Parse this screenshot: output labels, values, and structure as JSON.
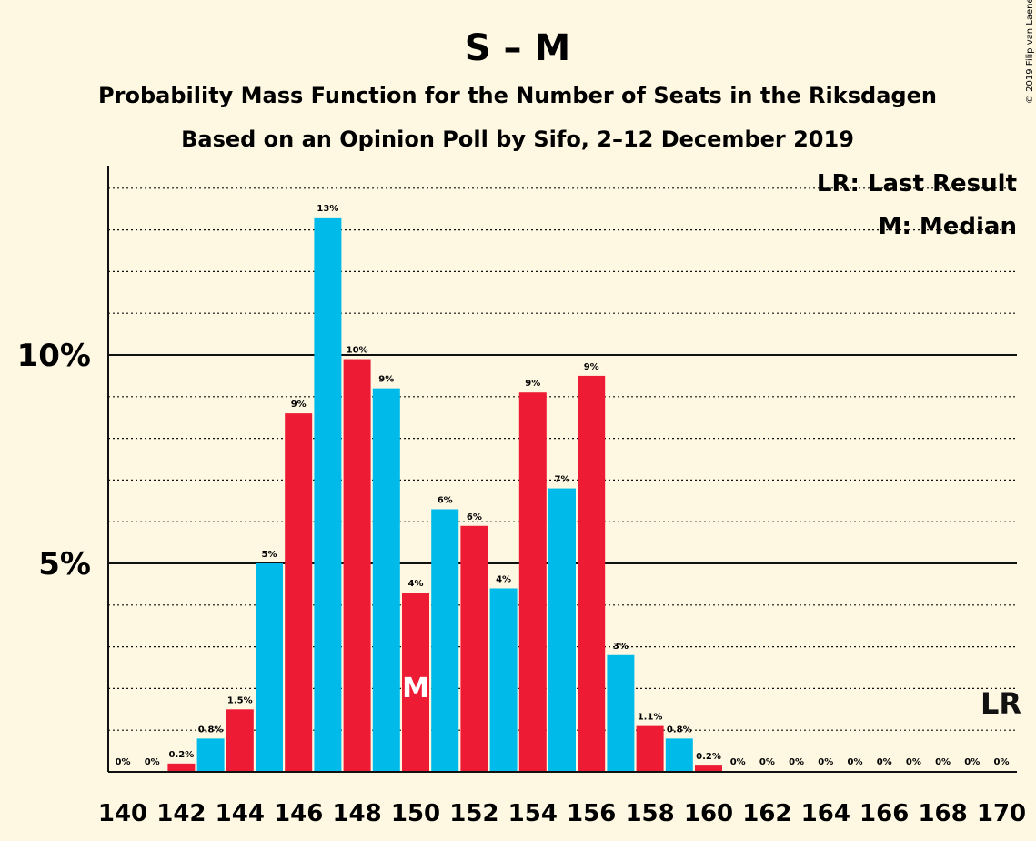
{
  "title": "S – M",
  "subtitle1": "Probability Mass Function for the Number of Seats in the Riksdagen",
  "subtitle2": "Based on an Opinion Poll by Sifo, 2–12 December 2019",
  "credit": "© 2019 Filip van Laenen",
  "legend": {
    "last_result": "LR: Last Result",
    "median": "M: Median"
  },
  "markers": {
    "median_label": "M",
    "median_seat": 150,
    "last_result_label": "LR",
    "last_result_seat": 170
  },
  "colors": {
    "blue": "#00bbea",
    "red": "#ed1b34",
    "median_text": "#ffffff",
    "background": "#fef8e3"
  },
  "chart_data": {
    "type": "bar",
    "x": [
      140,
      141,
      142,
      143,
      144,
      145,
      146,
      147,
      148,
      149,
      150,
      151,
      152,
      153,
      154,
      155,
      156,
      157,
      158,
      159,
      160,
      161,
      162,
      163,
      164,
      165,
      166,
      167,
      168,
      169,
      170
    ],
    "values": [
      0,
      0,
      0.2,
      0.8,
      1.5,
      5.0,
      8.6,
      13.3,
      9.9,
      9.2,
      4.3,
      6.3,
      5.9,
      4.4,
      9.1,
      6.8,
      9.5,
      2.8,
      1.1,
      0.8,
      0.15,
      0,
      0,
      0,
      0,
      0,
      0,
      0,
      0,
      0,
      0
    ],
    "labels": [
      "0%",
      "0%",
      "0.2%",
      "0.8%",
      "1.5%",
      "5%",
      "9%",
      "13%",
      "10%",
      "9%",
      "4%",
      "6%",
      "6%",
      "4%",
      "9%",
      "7%",
      "9%",
      "3%",
      "1.1%",
      "0.8%",
      "0.2%",
      "0%",
      "0%",
      "0%",
      "0%",
      "0%",
      "0%",
      "0%",
      "0%",
      "0%",
      "0%"
    ],
    "bar_colors": [
      "red",
      "red",
      "red",
      "blue",
      "red",
      "blue",
      "red",
      "blue",
      "red",
      "blue",
      "red",
      "blue",
      "red",
      "blue",
      "red",
      "blue",
      "red",
      "blue",
      "red",
      "blue",
      "red",
      "red",
      "red",
      "red",
      "red",
      "red",
      "red",
      "red",
      "red",
      "red",
      "red"
    ],
    "xtick_labels": [
      "140",
      "142",
      "144",
      "146",
      "148",
      "150",
      "152",
      "154",
      "156",
      "158",
      "160",
      "162",
      "164",
      "166",
      "168",
      "170"
    ],
    "ytick_labels": [
      {
        "value": 5,
        "label": "5%"
      },
      {
        "value": 10,
        "label": "10%"
      }
    ],
    "ylim": [
      0,
      14.5
    ],
    "grid": "dotted every 1%, solid at 5% and 10%"
  }
}
